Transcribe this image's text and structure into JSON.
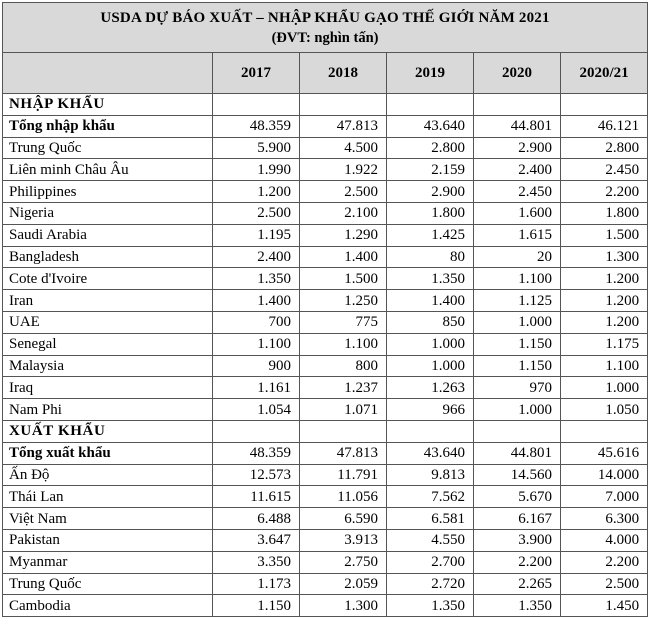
{
  "title": "USDA DỰ BÁO XUẤT – NHẬP KHẨU GẠO THẾ GIỚI NĂM 2021",
  "subtitle": "(ĐVT: nghìn tấn)",
  "columns": [
    "",
    "2017",
    "2018",
    "2019",
    "2020",
    "2020/21"
  ],
  "sections": [
    {
      "name": "NHẬP KHẨU",
      "rows": [
        {
          "label": "Tổng nhập khẩu",
          "values": [
            "48.359",
            "47.813",
            "43.640",
            "44.801",
            "46.121"
          ],
          "total": true
        },
        {
          "label": "Trung Quốc",
          "values": [
            "5.900",
            "4.500",
            "2.800",
            "2.900",
            "2.800"
          ]
        },
        {
          "label": "Liên minh Châu Âu",
          "values": [
            "1.990",
            "1.922",
            "2.159",
            "2.400",
            "2.450"
          ]
        },
        {
          "label": "Philippines",
          "values": [
            "1.200",
            "2.500",
            "2.900",
            "2.450",
            "2.200"
          ]
        },
        {
          "label": "Nigeria",
          "values": [
            "2.500",
            "2.100",
            "1.800",
            "1.600",
            "1.800"
          ]
        },
        {
          "label": "Saudi Arabia",
          "values": [
            "1.195",
            "1.290",
            "1.425",
            "1.615",
            "1.500"
          ]
        },
        {
          "label": "Bangladesh",
          "values": [
            "2.400",
            "1.400",
            "80",
            "20",
            "1.300"
          ]
        },
        {
          "label": "Cote d'Ivoire",
          "values": [
            "1.350",
            "1.500",
            "1.350",
            "1.100",
            "1.200"
          ]
        },
        {
          "label": "Iran",
          "values": [
            "1.400",
            "1.250",
            "1.400",
            "1.125",
            "1.200"
          ]
        },
        {
          "label": "UAE",
          "values": [
            "700",
            "775",
            "850",
            "1.000",
            "1.200"
          ]
        },
        {
          "label": "Senegal",
          "values": [
            "1.100",
            "1.100",
            "1.000",
            "1.150",
            "1.175"
          ]
        },
        {
          "label": "Malaysia",
          "values": [
            "900",
            "800",
            "1.000",
            "1.150",
            "1.100"
          ]
        },
        {
          "label": "Iraq",
          "values": [
            "1.161",
            "1.237",
            "1.263",
            "970",
            "1.000"
          ]
        },
        {
          "label": "Nam Phi",
          "values": [
            "1.054",
            "1.071",
            "966",
            "1.000",
            "1.050"
          ]
        }
      ]
    },
    {
      "name": "XUẤT KHẨU",
      "rows": [
        {
          "label": "Tổng xuất khẩu",
          "values": [
            "48.359",
            "47.813",
            "43.640",
            "44.801",
            "45.616"
          ],
          "total": true
        },
        {
          "label": "Ấn Độ",
          "values": [
            "12.573",
            "11.791",
            "9.813",
            "14.560",
            "14.000"
          ]
        },
        {
          "label": "Thái Lan",
          "values": [
            "11.615",
            "11.056",
            "7.562",
            "5.670",
            "7.000"
          ]
        },
        {
          "label": "Việt Nam",
          "values": [
            "6.488",
            "6.590",
            "6.581",
            "6.167",
            "6.300"
          ]
        },
        {
          "label": "Pakistan",
          "values": [
            "3.647",
            "3.913",
            "4.550",
            "3.900",
            "4.000"
          ]
        },
        {
          "label": "Myanmar",
          "values": [
            "3.350",
            "2.750",
            "2.700",
            "2.200",
            "2.200"
          ]
        },
        {
          "label": "Trung Quốc",
          "values": [
            "1.173",
            "2.059",
            "2.720",
            "2.265",
            "2.500"
          ]
        },
        {
          "label": "Cambodia",
          "values": [
            "1.150",
            "1.300",
            "1.350",
            "1.350",
            "1.450"
          ]
        }
      ]
    }
  ]
}
